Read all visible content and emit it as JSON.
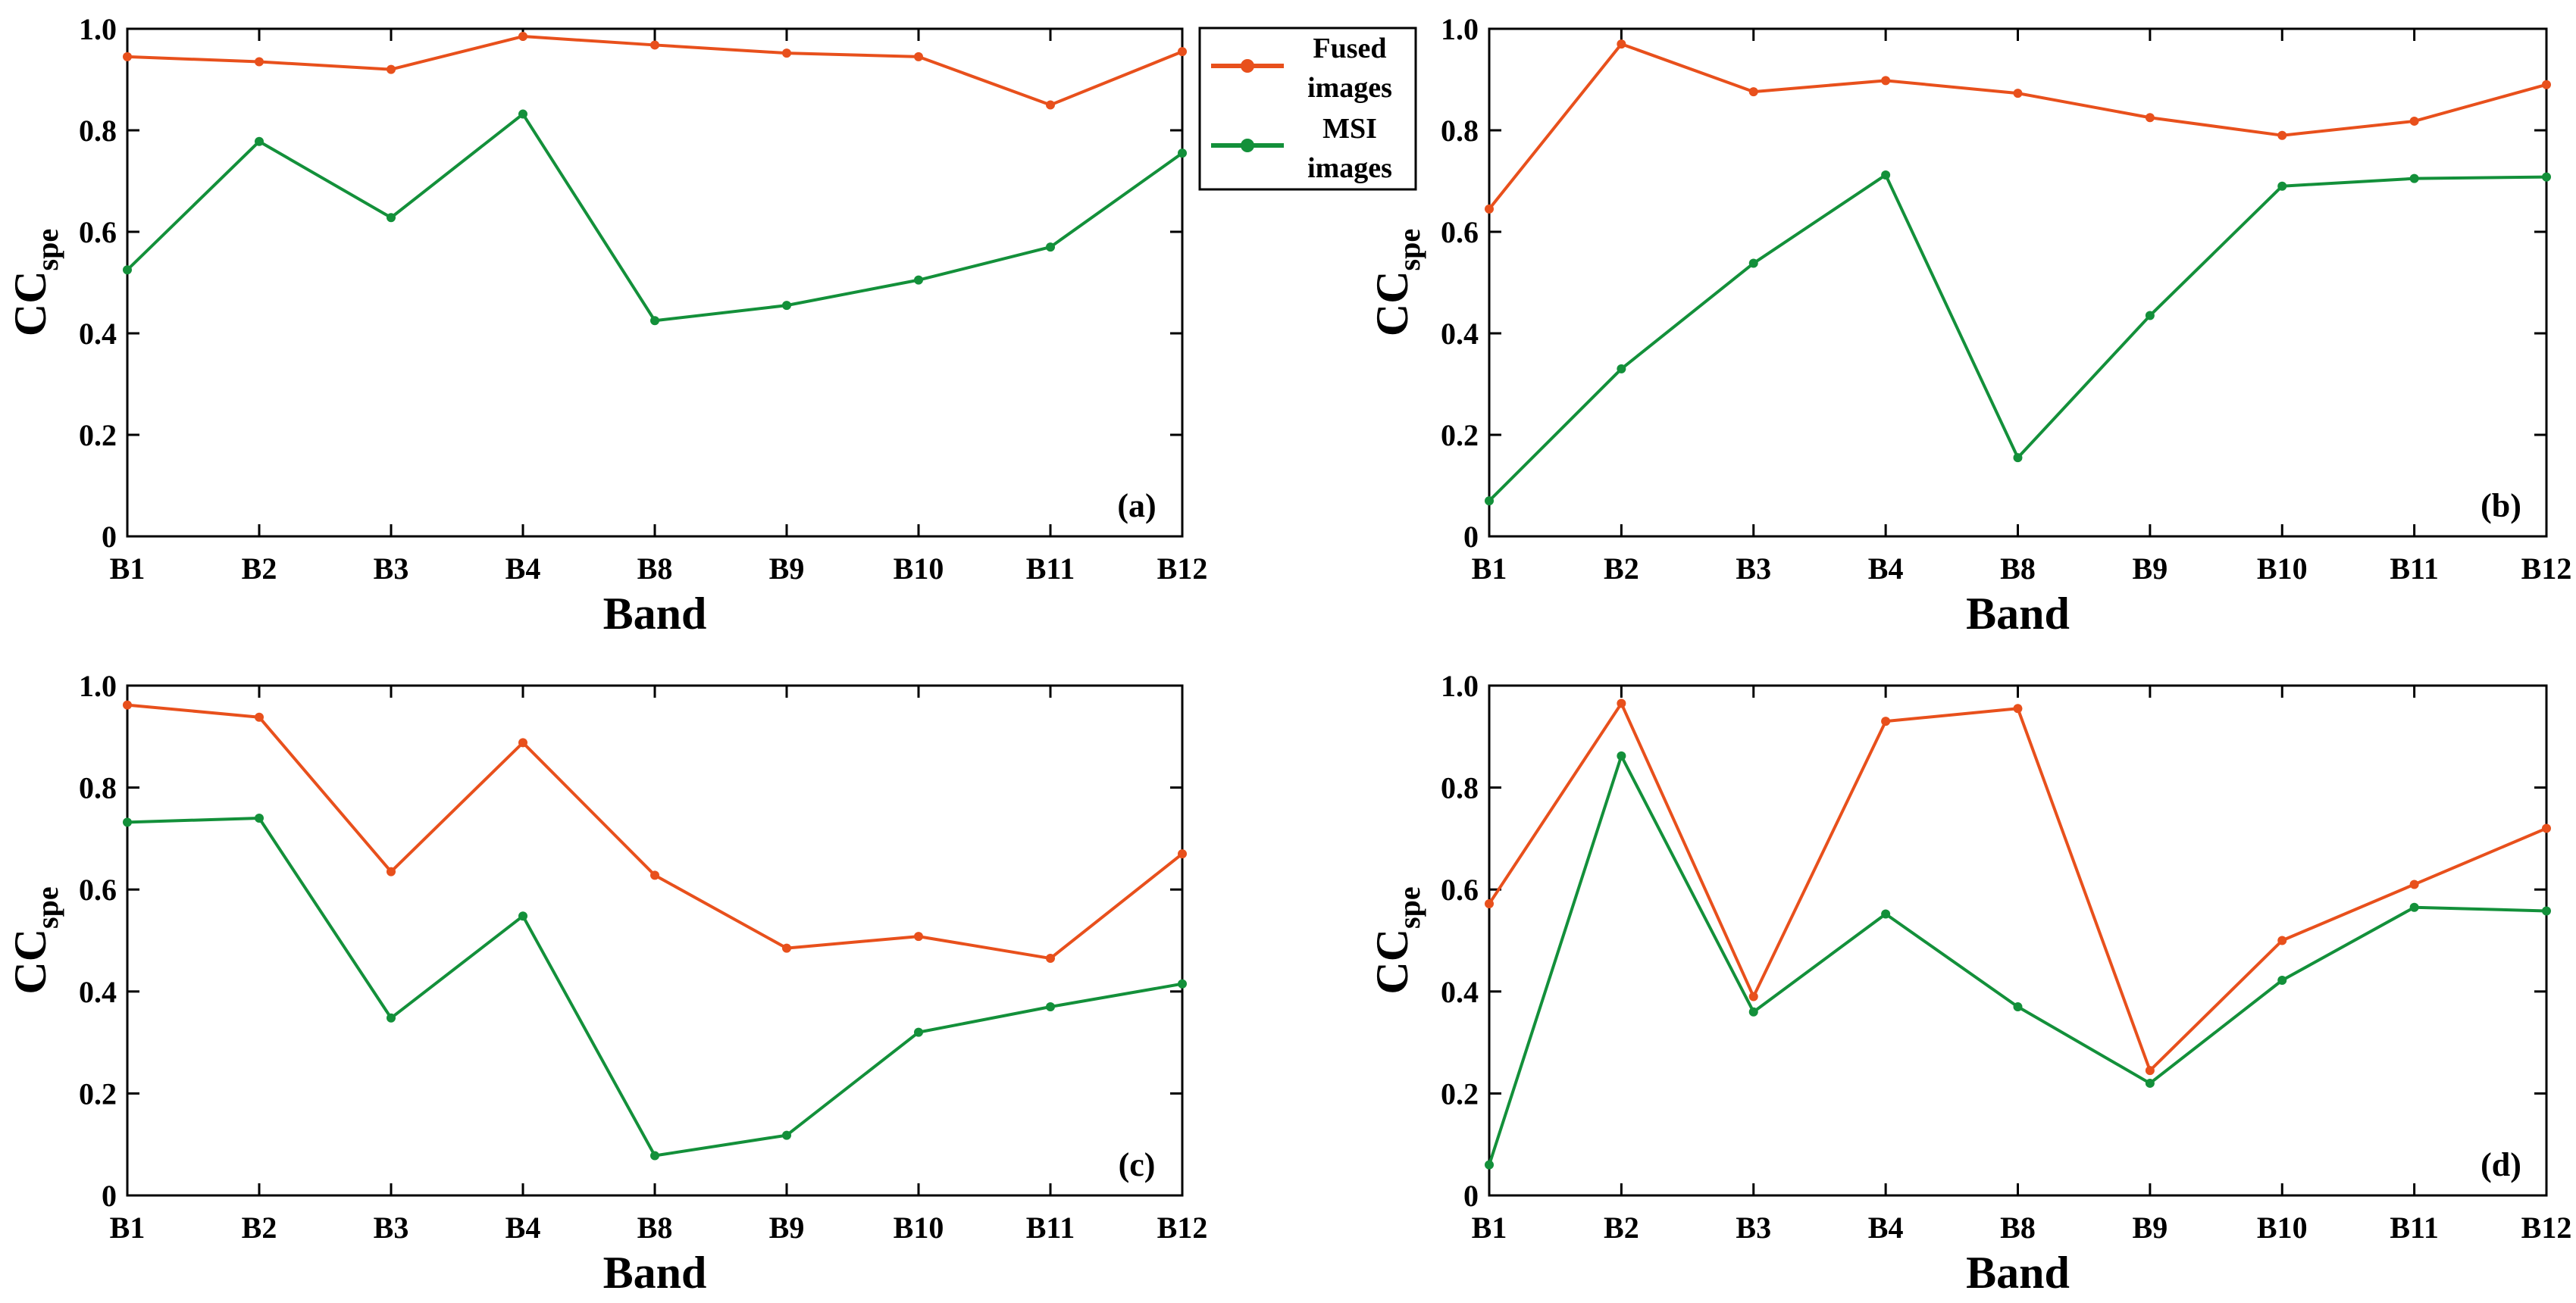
{
  "chart_data": [
    {
      "type": "line",
      "panel_label": "(a)",
      "xlabel": "Band",
      "ylabel": {
        "main": "CC",
        "sub": "spe"
      },
      "ylim": [
        0,
        1.0
      ],
      "yticks": [
        "0",
        "0.2",
        "0.4",
        "0.6",
        "0.8",
        "1.0"
      ],
      "categories": [
        "B1",
        "B2",
        "B3",
        "B4",
        "B8",
        "B9",
        "B10",
        "B11",
        "B12"
      ],
      "series": [
        {
          "name": "Fused images",
          "color": "#e8501c",
          "values": [
            0.945,
            0.935,
            0.92,
            0.985,
            0.968,
            0.952,
            0.945,
            0.85,
            0.955
          ]
        },
        {
          "name": "MSI images",
          "color": "#13903a",
          "values": [
            0.525,
            0.778,
            0.628,
            0.832,
            0.425,
            0.455,
            0.505,
            0.57,
            0.755
          ]
        }
      ]
    },
    {
      "type": "line",
      "panel_label": "(b)",
      "xlabel": "Band",
      "ylabel": {
        "main": "CC",
        "sub": "spe"
      },
      "ylim": [
        0,
        1.0
      ],
      "yticks": [
        "0",
        "0.2",
        "0.4",
        "0.6",
        "0.8",
        "1.0"
      ],
      "categories": [
        "B1",
        "B2",
        "B3",
        "B4",
        "B8",
        "B9",
        "B10",
        "B11",
        "B12"
      ],
      "series": [
        {
          "name": "Fused images",
          "color": "#e8501c",
          "values": [
            0.645,
            0.97,
            0.876,
            0.898,
            0.873,
            0.825,
            0.79,
            0.818,
            0.89
          ]
        },
        {
          "name": "MSI images",
          "color": "#13903a",
          "values": [
            0.07,
            0.33,
            0.538,
            0.712,
            0.155,
            0.435,
            0.69,
            0.705,
            0.708
          ]
        }
      ]
    },
    {
      "type": "line",
      "panel_label": "(c)",
      "xlabel": "Band",
      "ylabel": {
        "main": "CC",
        "sub": "spe"
      },
      "ylim": [
        0,
        1.0
      ],
      "yticks": [
        "0",
        "0.2",
        "0.4",
        "0.6",
        "0.8",
        "1.0"
      ],
      "categories": [
        "B1",
        "B2",
        "B3",
        "B4",
        "B8",
        "B9",
        "B10",
        "B11",
        "B12"
      ],
      "series": [
        {
          "name": "Fused images",
          "color": "#e8501c",
          "values": [
            0.962,
            0.938,
            0.635,
            0.888,
            0.628,
            0.485,
            0.508,
            0.465,
            0.67
          ]
        },
        {
          "name": "MSI images",
          "color": "#13903a",
          "values": [
            0.732,
            0.74,
            0.348,
            0.548,
            0.078,
            0.118,
            0.32,
            0.37,
            0.415
          ]
        }
      ]
    },
    {
      "type": "line",
      "panel_label": "(d)",
      "xlabel": "Band",
      "ylabel": {
        "main": "CC",
        "sub": "spe"
      },
      "ylim": [
        0,
        1.0
      ],
      "yticks": [
        "0",
        "0.2",
        "0.4",
        "0.6",
        "0.8",
        "1.0"
      ],
      "categories": [
        "B1",
        "B2",
        "B3",
        "B4",
        "B8",
        "B9",
        "B10",
        "B11",
        "B12"
      ],
      "series": [
        {
          "name": "Fused images",
          "color": "#e8501c",
          "values": [
            0.572,
            0.965,
            0.39,
            0.93,
            0.955,
            0.245,
            0.5,
            0.61,
            0.72
          ]
        },
        {
          "name": "MSI images",
          "color": "#13903a",
          "values": [
            0.06,
            0.862,
            0.36,
            0.552,
            0.37,
            0.22,
            0.422,
            0.565,
            0.558
          ]
        }
      ]
    }
  ],
  "legend": {
    "entries": [
      {
        "line1": "Fused",
        "line2": "images",
        "color": "#e8501c"
      },
      {
        "line1": "MSI",
        "line2": "images",
        "color": "#13903a"
      }
    ]
  }
}
